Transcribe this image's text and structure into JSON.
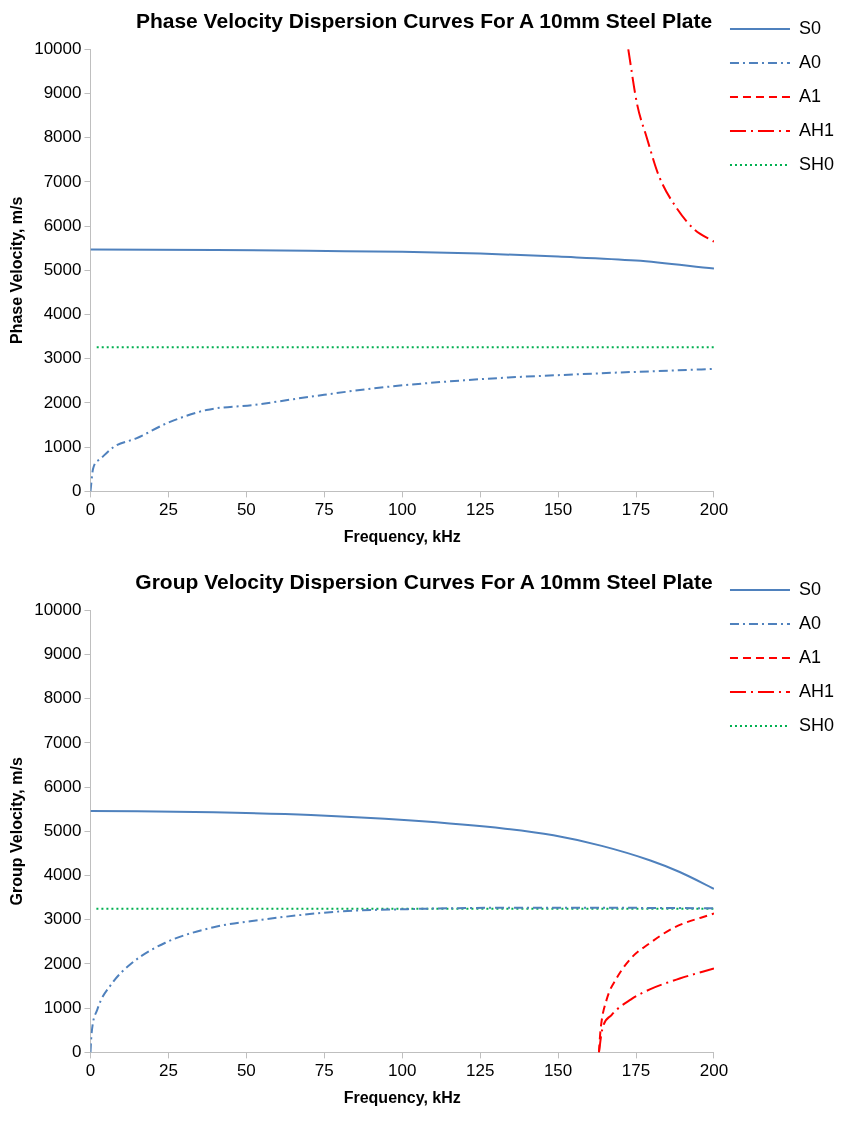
{
  "chart_data": [
    {
      "type": "line",
      "title": "Phase Velocity Dispersion Curves For A 10mm Steel Plate",
      "xlabel": "Frequency, kHz",
      "ylabel": "Phase Velocity, m/s",
      "xlim": [
        0,
        200
      ],
      "xticks": [
        0,
        25,
        50,
        75,
        100,
        125,
        150,
        175,
        200
      ],
      "ylim": [
        0,
        10000
      ],
      "yticks": [
        0,
        1000,
        2000,
        3000,
        4000,
        5000,
        6000,
        7000,
        8000,
        9000,
        10000
      ],
      "grid": false,
      "legend": "top right",
      "marker": "none",
      "series": [
        {
          "name": "S0",
          "color": "#4f81bd",
          "line_style": "solid",
          "x": [
            0,
            40,
            70,
            100,
            125,
            150,
            175,
            200
          ],
          "values": [
            5470,
            5460,
            5440,
            5420,
            5380,
            5310,
            5220,
            5040
          ]
        },
        {
          "name": "A0",
          "color": "#4f81bd",
          "line_style": "dashdot",
          "x": [
            0,
            0.8,
            3.1,
            7.8,
            14.7,
            24.8,
            37.2,
            52.8,
            71.4,
            94.6,
            125.7,
            156.7,
            200
          ],
          "values": [
            0,
            500,
            730,
            1020,
            1200,
            1550,
            1840,
            1960,
            2150,
            2360,
            2540,
            2650,
            2770
          ]
        },
        {
          "name": "A1",
          "color": "#ff0000",
          "line_style": "dashed"
        },
        {
          "name": "AH1",
          "color": "#ff0000",
          "line_style": "longdashdot",
          "x": [
            172.5,
            175.3,
            178.4,
            182.3,
            187.7,
            193.9,
            200
          ],
          "values": [
            10000,
            8770,
            8010,
            7140,
            6440,
            5910,
            5650
          ]
        },
        {
          "name": "SH0",
          "color": "#00b050",
          "line_style": "dotted",
          "x": [
            2,
            200
          ],
          "values": [
            3260,
            3260
          ]
        }
      ]
    },
    {
      "type": "line",
      "title": "Group Velocity Dispersion Curves For A 10mm Steel Plate",
      "xlabel": "Frequency, kHz",
      "ylabel": "Group Velocity, m/s",
      "xlim": [
        0,
        200
      ],
      "xticks": [
        0,
        25,
        50,
        75,
        100,
        125,
        150,
        175,
        200
      ],
      "ylim": [
        0,
        10000
      ],
      "yticks": [
        0,
        1000,
        2000,
        3000,
        4000,
        5000,
        6000,
        7000,
        8000,
        9000,
        10000
      ],
      "grid": false,
      "legend": "top right",
      "marker": "none",
      "series": [
        {
          "name": "S0",
          "color": "#4f81bd",
          "line_style": "solid",
          "x": [
            0,
            39.5,
            70.7,
            101.8,
            133,
            148.5,
            164,
            179.6,
            189,
            200
          ],
          "values": [
            5460,
            5430,
            5370,
            5250,
            5060,
            4910,
            4670,
            4340,
            4080,
            3700
          ]
        },
        {
          "name": "A0",
          "color": "#4f81bd",
          "line_style": "dashdot",
          "x": [
            0,
            0.3,
            2.2,
            6.8,
            13.1,
            24,
            39.5,
            55,
            78.4,
            101.8,
            133,
            164,
            200
          ],
          "values": [
            0,
            380,
            970,
            1550,
            2010,
            2480,
            2830,
            3000,
            3180,
            3240,
            3270,
            3270,
            3260
          ]
        },
        {
          "name": "A1",
          "color": "#ff0000",
          "line_style": "dashed",
          "x": [
            163.1,
            163.6,
            165.6,
            168.7,
            173.4,
            179.6,
            187.4,
            200
          ],
          "values": [
            0,
            500,
            1200,
            1670,
            2130,
            2480,
            2830,
            3140
          ]
        },
        {
          "name": "AH1",
          "color": "#ff0000",
          "line_style": "longdashdot",
          "x": [
            163.1,
            164.1,
            167.2,
            173.4,
            179.6,
            189,
            200
          ],
          "values": [
            0,
            500,
            850,
            1200,
            1430,
            1670,
            1900
          ]
        },
        {
          "name": "SH0",
          "color": "#00b050",
          "line_style": "dotted",
          "x": [
            1.9,
            200
          ],
          "values": [
            3250,
            3250
          ]
        }
      ]
    }
  ]
}
